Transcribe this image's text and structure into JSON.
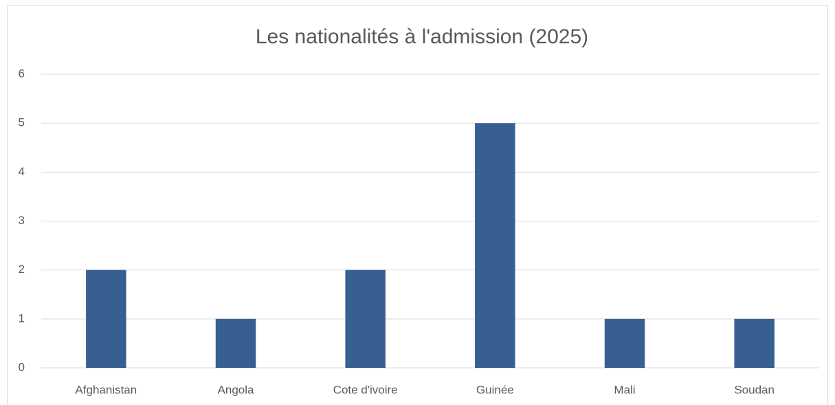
{
  "chart_data": {
    "type": "bar",
    "title": "Les nationalités à l'admission (2025)",
    "categories": [
      "Afghanistan",
      "Angola",
      "Cote d'ivoire",
      "Guinée",
      "Mali",
      "Soudan"
    ],
    "values": [
      2,
      1,
      2,
      5,
      1,
      1
    ],
    "color": "#375f91",
    "ylim": [
      0,
      6
    ],
    "yticks": [
      0,
      1,
      2,
      3,
      4,
      5,
      6
    ],
    "grid": true
  }
}
